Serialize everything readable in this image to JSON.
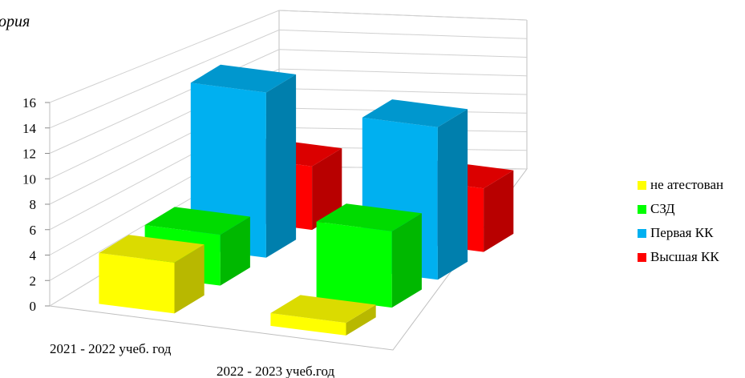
{
  "chart_data": {
    "type": "bar",
    "subtype": "3d-column",
    "title_fragment": "ория",
    "categories": [
      "2021 - 2022 учеб. год",
      "2022 - 2023 учеб.год"
    ],
    "series": [
      {
        "name": "не атестован",
        "color": "#ffff00",
        "values": [
          4,
          1
        ]
      },
      {
        "name": "СЗД",
        "color": "#00ff00",
        "values": [
          4,
          6
        ]
      },
      {
        "name": "Первая КК",
        "color": "#00b0f0",
        "values": [
          13,
          12
        ]
      },
      {
        "name": "Высшая КК",
        "color": "#ff0000",
        "values": [
          5,
          5
        ]
      }
    ],
    "y_ticks": [
      "0",
      "2",
      "4",
      "6",
      "8",
      "10",
      "12",
      "14",
      "16"
    ],
    "ylim": [
      0,
      16
    ],
    "grid": true,
    "legend_position": "right"
  }
}
